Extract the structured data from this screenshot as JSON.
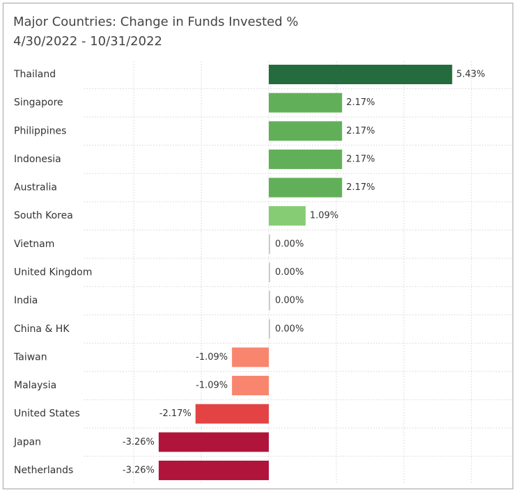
{
  "chart_data": {
    "type": "bar",
    "orientation": "horizontal",
    "title": "Major Countries:  Change in Funds Invested %",
    "subtitle": "4/30/2022 - 10/31/2022",
    "categories": [
      "Thailand",
      "Singapore",
      "Philippines",
      "Indonesia",
      "Australia",
      "South Korea",
      "Vietnam",
      "United Kingdom",
      "India",
      "China & HK",
      "Taiwan",
      "Malaysia",
      "United States",
      "Japan",
      "Netherlands"
    ],
    "values": [
      5.43,
      2.17,
      2.17,
      2.17,
      2.17,
      1.09,
      0,
      0,
      0,
      0,
      -1.09,
      -1.09,
      -2.17,
      -3.26,
      -3.26
    ],
    "value_labels": [
      "5.43%",
      "2.17%",
      "2.17%",
      "2.17%",
      "2.17%",
      "1.09%",
      "0.00%",
      "0.00%",
      "0.00%",
      "0.00%",
      "-1.09%",
      "-1.09%",
      "-2.17%",
      "-3.26%",
      "-3.26%"
    ],
    "colors": [
      "#246b3e",
      "#62af59",
      "#62af59",
      "#62af59",
      "#62af59",
      "#86cc74",
      "#cccccc",
      "#cccccc",
      "#cccccc",
      "#cccccc",
      "#f8856e",
      "#f8856e",
      "#e34343",
      "#b0143a",
      "#b0143a"
    ],
    "xlim": [
      -4,
      6
    ],
    "xticks": [
      -4,
      -2,
      0,
      2,
      4,
      6
    ],
    "grid": true
  }
}
